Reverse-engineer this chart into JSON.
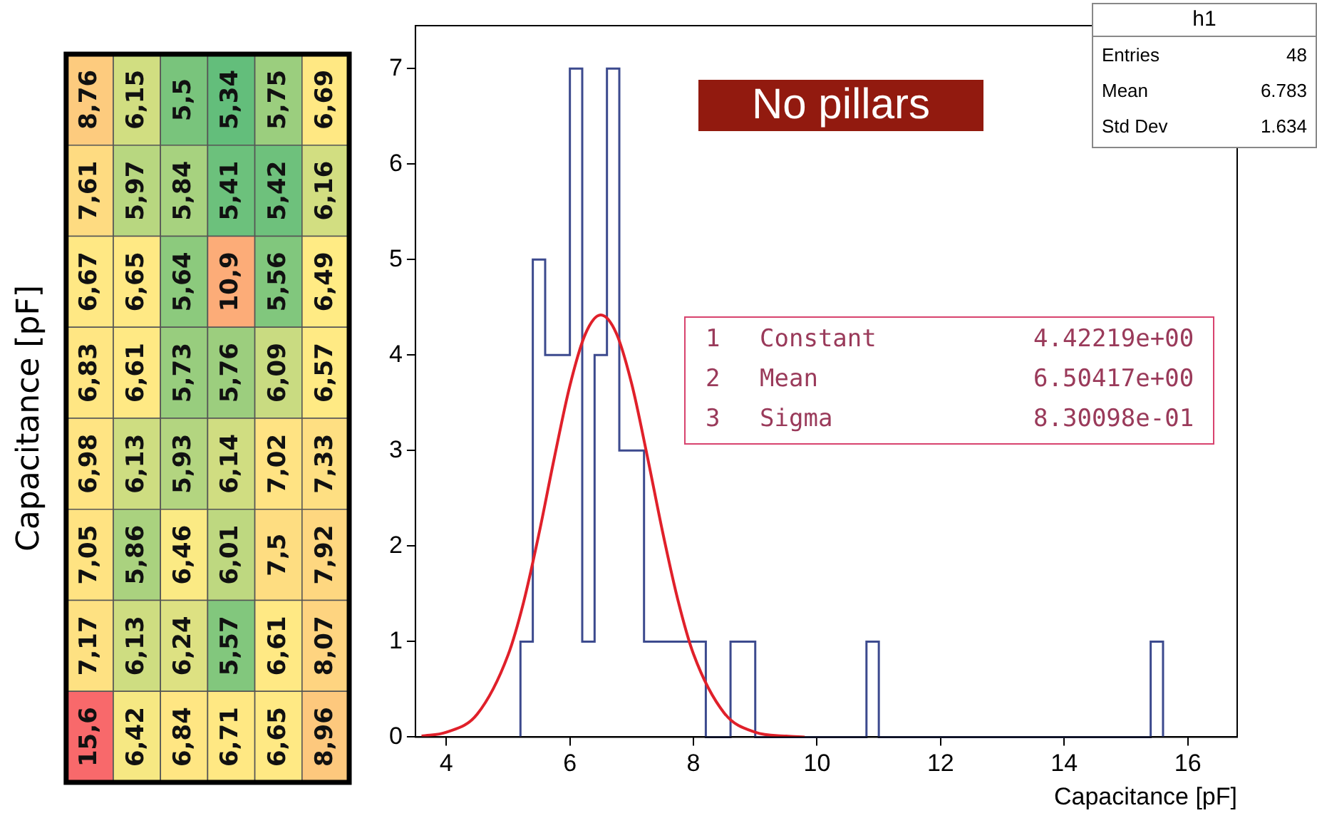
{
  "chart_data": [
    {
      "type": "heatmap",
      "ylabel": "Capacitance [pF]",
      "categories": [
        null,
        null,
        null,
        null,
        null,
        null
      ],
      "y_categories": [
        null,
        null,
        null,
        null,
        null,
        null,
        null,
        null
      ],
      "cells": [
        [
          8.76,
          6.15,
          5.5,
          5.34,
          5.75,
          6.69
        ],
        [
          7.61,
          5.97,
          5.84,
          5.41,
          5.42,
          6.16
        ],
        [
          6.67,
          6.65,
          5.64,
          10.9,
          5.56,
          6.49
        ],
        [
          6.83,
          6.61,
          5.73,
          5.76,
          6.09,
          6.57
        ],
        [
          6.98,
          6.13,
          5.93,
          6.14,
          7.02,
          7.33
        ],
        [
          7.05,
          5.86,
          6.46,
          6.01,
          7.5,
          7.92
        ],
        [
          7.17,
          6.13,
          6.24,
          5.57,
          6.61,
          8.07
        ],
        [
          15.6,
          6.42,
          6.84,
          6.71,
          6.65,
          8.96
        ]
      ],
      "cell_labels": [
        [
          "8,76",
          "6,15",
          "5,5",
          "5,34",
          "5,75",
          "6,69"
        ],
        [
          "7,61",
          "5,97",
          "5,84",
          "5,41",
          "5,42",
          "6,16"
        ],
        [
          "6,67",
          "6,65",
          "5,64",
          "10,9",
          "5,56",
          "6,49"
        ],
        [
          "6,83",
          "6,61",
          "5,73",
          "5,76",
          "6,09",
          "6,57"
        ],
        [
          "6,98",
          "6,13",
          "5,93",
          "6,14",
          "7,02",
          "7,33"
        ],
        [
          "7,05",
          "5,86",
          "6,46",
          "6,01",
          "7,5",
          "7,92"
        ],
        [
          "7,17",
          "6,13",
          "6,24",
          "5,57",
          "6,61",
          "8,07"
        ],
        [
          "15,6",
          "6,42",
          "6,84",
          "6,71",
          "6,65",
          "8,96"
        ]
      ]
    },
    {
      "type": "histogram",
      "xlabel": "Capacitance [pF]",
      "bins": [
        5.2,
        5.4,
        5.6,
        5.8,
        6.0,
        6.2,
        6.4,
        6.6,
        6.8,
        7.0,
        7.2,
        7.4,
        7.6,
        7.8,
        8.0,
        8.2,
        8.4,
        8.6,
        8.8,
        9.0,
        10.8,
        11.0,
        15.4,
        15.6
      ],
      "values": [
        1,
        5,
        4,
        4,
        7,
        1,
        4,
        7,
        3,
        3,
        1,
        1,
        1,
        1,
        1,
        0,
        0,
        1,
        1,
        0,
        1,
        0,
        1
      ],
      "color": "#3c4a8e",
      "series": [
        {
          "type": "line",
          "color": "#e0202a",
          "x": [
            3.6,
            4,
            4.5,
            5,
            5.25,
            5.5,
            5.75,
            6,
            6.25,
            6.5,
            6.75,
            7,
            7.25,
            7.5,
            7.75,
            8,
            8.5,
            9,
            9.5,
            9.8
          ],
          "values": [
            0.01,
            0.05,
            0.24,
            0.86,
            1.41,
            2.13,
            2.93,
            3.68,
            4.22,
            4.42,
            4.23,
            3.7,
            2.95,
            2.15,
            1.43,
            0.87,
            0.25,
            0.05,
            0.01,
            0
          ]
        }
      ],
      "marker": "none",
      "xlim": [
        3.5,
        16.8
      ],
      "xticks": [
        4,
        6,
        8,
        10,
        12,
        14,
        16
      ],
      "ylim": [
        0,
        7.45
      ],
      "yticks": [
        0,
        1,
        2,
        3,
        4,
        5,
        6,
        7
      ],
      "grid": false,
      "annotations": [
        "No pillars",
        "1",
        "Constant",
        "4.42219e+00",
        "2",
        "Mean",
        "6.50417e+00",
        "3",
        "Sigma",
        "8.30098e-01",
        "h1",
        "Entries",
        "48",
        "Mean",
        "6.783",
        "Std Dev",
        "1.634"
      ]
    }
  ]
}
